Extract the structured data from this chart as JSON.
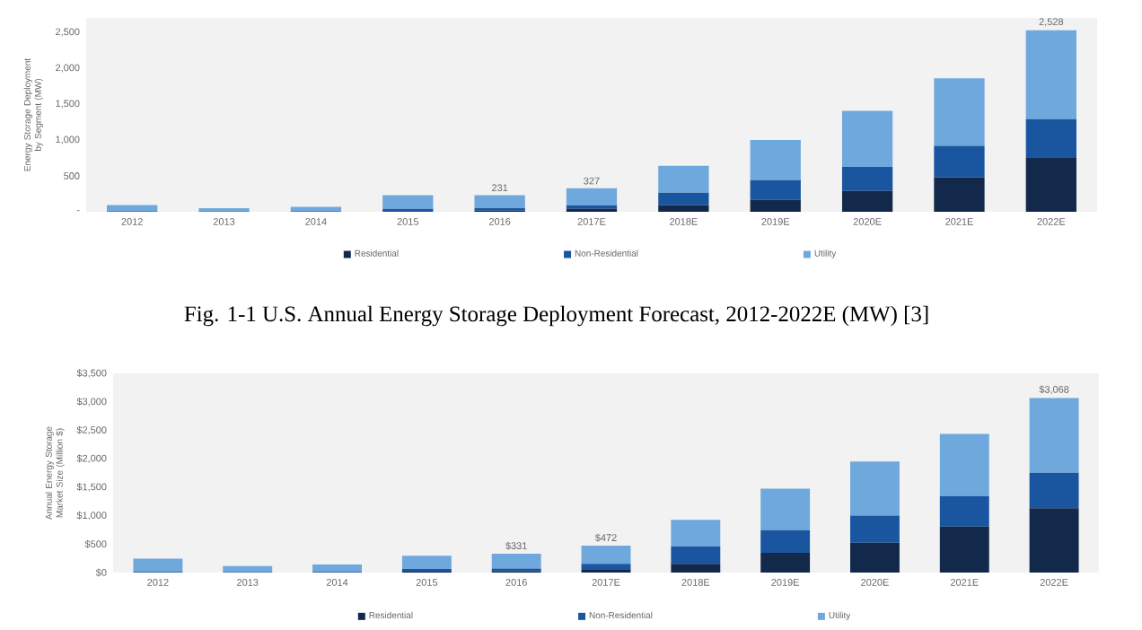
{
  "chart_data": [
    {
      "type": "bar",
      "stacked": true,
      "ylabel": "Energy Storage Deployment by Segment (MW)",
      "categories": [
        "2012",
        "2013",
        "2014",
        "2015",
        "2016",
        "2017E",
        "2018E",
        "2019E",
        "2020E",
        "2021E",
        "2022E"
      ],
      "series": [
        {
          "name": "Residential",
          "color": "#13294b",
          "values": [
            2,
            2,
            3,
            10,
            15,
            40,
            90,
            165,
            290,
            480,
            760
          ]
        },
        {
          "name": "Non-Residential",
          "color": "#1a56a0",
          "values": [
            8,
            5,
            7,
            30,
            35,
            50,
            175,
            275,
            335,
            440,
            530
          ]
        },
        {
          "name": "Utility",
          "color": "#6fa8dc",
          "values": [
            85,
            43,
            60,
            190,
            181,
            237,
            375,
            560,
            780,
            940,
            1238
          ]
        }
      ],
      "ylim": [
        0,
        2700
      ],
      "yticks": [
        {
          "value": 0,
          "label": "-"
        },
        {
          "value": 500,
          "label": "500"
        },
        {
          "value": 1000,
          "label": "1,000"
        },
        {
          "value": 1500,
          "label": "1,500"
        },
        {
          "value": 2000,
          "label": "2,000"
        },
        {
          "value": 2500,
          "label": "2,500"
        }
      ],
      "totals": [
        null,
        null,
        null,
        null,
        "231",
        "327",
        null,
        null,
        null,
        null,
        "2,528"
      ],
      "legend": "bottom",
      "grid": false,
      "annotations": [
        "Fig. 1-1 U.S. Annual Energy Storage Deployment Forecast, 2012-2022E (MW) [3]"
      ]
    },
    {
      "type": "bar",
      "stacked": true,
      "ylabel": "Annual Energy Storage Market Size (Million $)",
      "categories": [
        "2012",
        "2013",
        "2014",
        "2015",
        "2016",
        "2017E",
        "2018E",
        "2019E",
        "2020E",
        "2021E",
        "2022E"
      ],
      "series": [
        {
          "name": "Residential",
          "color": "#13294b",
          "values": [
            3,
            3,
            4,
            15,
            20,
            60,
            155,
            345,
            525,
            810,
            1130
          ]
        },
        {
          "name": "Non-Residential",
          "color": "#1a56a0",
          "values": [
            12,
            10,
            12,
            50,
            50,
            95,
            305,
            400,
            475,
            535,
            625
          ]
        },
        {
          "name": "Utility",
          "color": "#6fa8dc",
          "values": [
            230,
            102,
            124,
            230,
            261,
            317,
            465,
            730,
            950,
            1090,
            1313
          ]
        }
      ],
      "ylim": [
        0,
        3500
      ],
      "yticks": [
        {
          "value": 0,
          "label": "$0"
        },
        {
          "value": 500,
          "label": "$500"
        },
        {
          "value": 1000,
          "label": "$1,000"
        },
        {
          "value": 1500,
          "label": "$1,500"
        },
        {
          "value": 2000,
          "label": "$2,000"
        },
        {
          "value": 2500,
          "label": "$2,500"
        },
        {
          "value": 3000,
          "label": "$3,000"
        },
        {
          "value": 3500,
          "label": "$3,500"
        }
      ],
      "totals": [
        null,
        null,
        null,
        null,
        "$331",
        "$472",
        null,
        null,
        null,
        null,
        "$3,068"
      ],
      "legend": "bottom",
      "grid": false
    }
  ]
}
